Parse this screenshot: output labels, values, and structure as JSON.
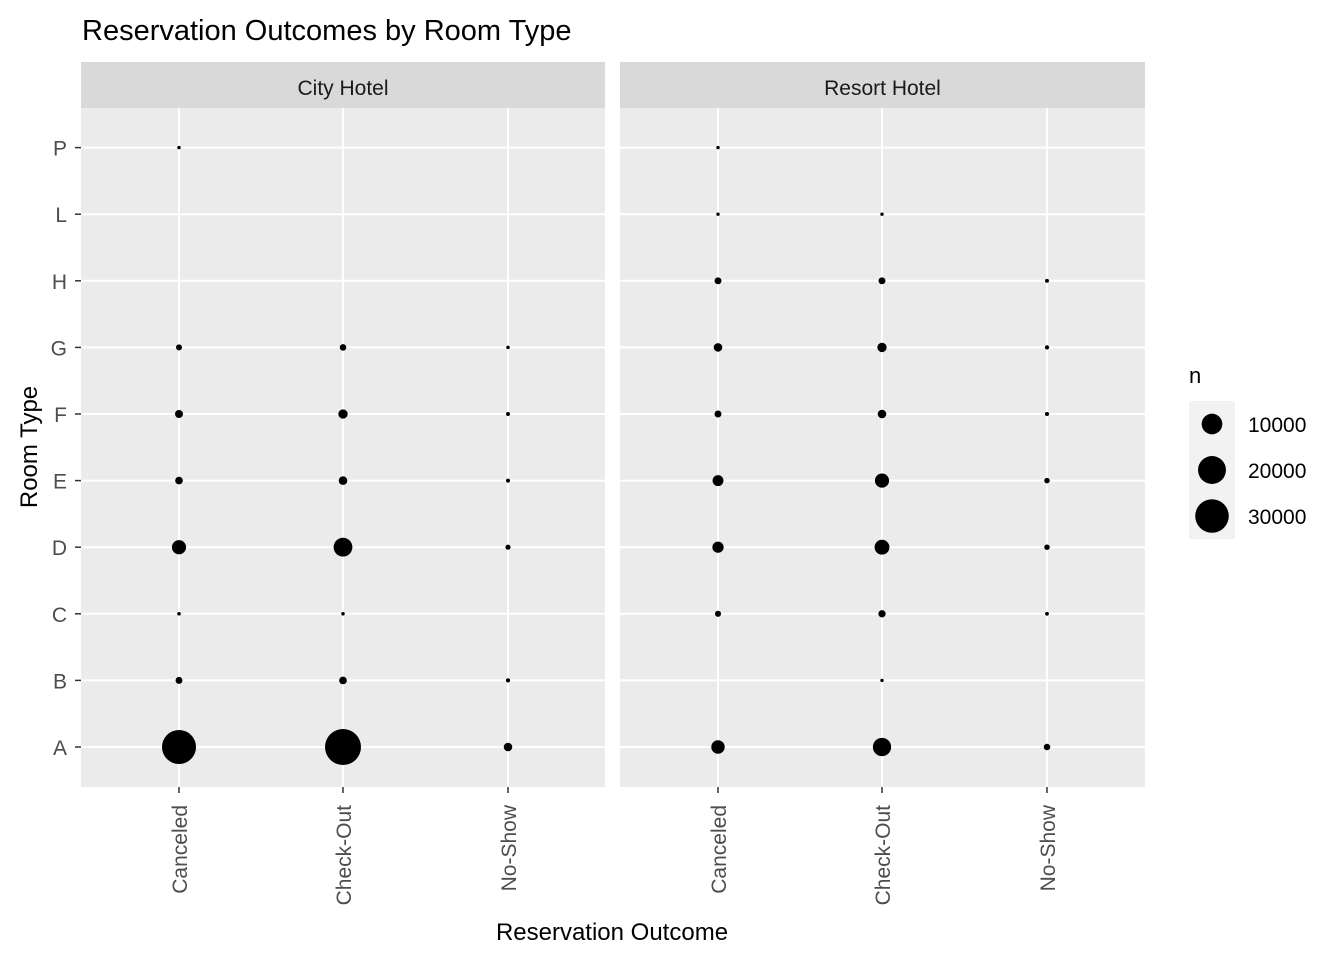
{
  "chart_data": {
    "type": "scatter",
    "title": "Reservation Outcomes by Room Type",
    "xlabel": "Reservation Outcome",
    "ylabel": "Room Type",
    "x_categories": [
      "Canceled",
      "Check-Out",
      "No-Show"
    ],
    "y_categories": [
      "A",
      "B",
      "C",
      "D",
      "E",
      "F",
      "G",
      "H",
      "L",
      "P"
    ],
    "grid": true,
    "size_legend": {
      "title": "n",
      "placement": "right",
      "entries": [
        {
          "label": "10000",
          "value": 10000
        },
        {
          "label": "20000",
          "value": 20000
        },
        {
          "label": "30000",
          "value": 30000
        }
      ]
    },
    "colors": {
      "panel_background": "#ebebeb",
      "strip_background": "#d9d9d9",
      "grid": "#ffffff",
      "point": "#000000",
      "tick_text": "#4d4d4d",
      "strip_text": "#1a1a1a"
    },
    "facets": [
      {
        "name": "City Hotel",
        "points": [
          {
            "x": "Canceled",
            "y": "A",
            "n": 31000
          },
          {
            "x": "Check-Out",
            "y": "A",
            "n": 35000
          },
          {
            "x": "No-Show",
            "y": "A",
            "n": 1000
          },
          {
            "x": "Canceled",
            "y": "B",
            "n": 500
          },
          {
            "x": "Check-Out",
            "y": "B",
            "n": 700
          },
          {
            "x": "No-Show",
            "y": "B",
            "n": 50
          },
          {
            "x": "Canceled",
            "y": "C",
            "n": 10
          },
          {
            "x": "Check-Out",
            "y": "C",
            "n": 10
          },
          {
            "x": "Canceled",
            "y": "D",
            "n": 4000
          },
          {
            "x": "Check-Out",
            "y": "D",
            "n": 8000
          },
          {
            "x": "No-Show",
            "y": "D",
            "n": 150
          },
          {
            "x": "Canceled",
            "y": "E",
            "n": 700
          },
          {
            "x": "Check-Out",
            "y": "E",
            "n": 1000
          },
          {
            "x": "No-Show",
            "y": "E",
            "n": 30
          },
          {
            "x": "Canceled",
            "y": "F",
            "n": 800
          },
          {
            "x": "Check-Out",
            "y": "F",
            "n": 1300
          },
          {
            "x": "No-Show",
            "y": "F",
            "n": 30
          },
          {
            "x": "Canceled",
            "y": "G",
            "n": 300
          },
          {
            "x": "Check-Out",
            "y": "G",
            "n": 400
          },
          {
            "x": "No-Show",
            "y": "G",
            "n": 10
          },
          {
            "x": "Canceled",
            "y": "P",
            "n": 5
          }
        ]
      },
      {
        "name": "Resort Hotel",
        "points": [
          {
            "x": "Canceled",
            "y": "A",
            "n": 3500
          },
          {
            "x": "Check-Out",
            "y": "A",
            "n": 7500
          },
          {
            "x": "No-Show",
            "y": "A",
            "n": 400
          },
          {
            "x": "Check-Out",
            "y": "B",
            "n": 5
          },
          {
            "x": "Canceled",
            "y": "C",
            "n": 300
          },
          {
            "x": "Check-Out",
            "y": "C",
            "n": 600
          },
          {
            "x": "No-Show",
            "y": "C",
            "n": 20
          },
          {
            "x": "Canceled",
            "y": "D",
            "n": 2200
          },
          {
            "x": "Check-Out",
            "y": "D",
            "n": 4500
          },
          {
            "x": "No-Show",
            "y": "D",
            "n": 200
          },
          {
            "x": "Canceled",
            "y": "E",
            "n": 2000
          },
          {
            "x": "Check-Out",
            "y": "E",
            "n": 4000
          },
          {
            "x": "No-Show",
            "y": "E",
            "n": 200
          },
          {
            "x": "Canceled",
            "y": "F",
            "n": 500
          },
          {
            "x": "Check-Out",
            "y": "F",
            "n": 1000
          },
          {
            "x": "No-Show",
            "y": "F",
            "n": 40
          },
          {
            "x": "Canceled",
            "y": "G",
            "n": 1000
          },
          {
            "x": "Check-Out",
            "y": "G",
            "n": 1300
          },
          {
            "x": "No-Show",
            "y": "G",
            "n": 50
          },
          {
            "x": "Canceled",
            "y": "H",
            "n": 500
          },
          {
            "x": "Check-Out",
            "y": "H",
            "n": 500
          },
          {
            "x": "No-Show",
            "y": "H",
            "n": 30
          },
          {
            "x": "Canceled",
            "y": "L",
            "n": 5
          },
          {
            "x": "Check-Out",
            "y": "L",
            "n": 5
          },
          {
            "x": "Canceled",
            "y": "P",
            "n": 5
          }
        ]
      }
    ]
  }
}
